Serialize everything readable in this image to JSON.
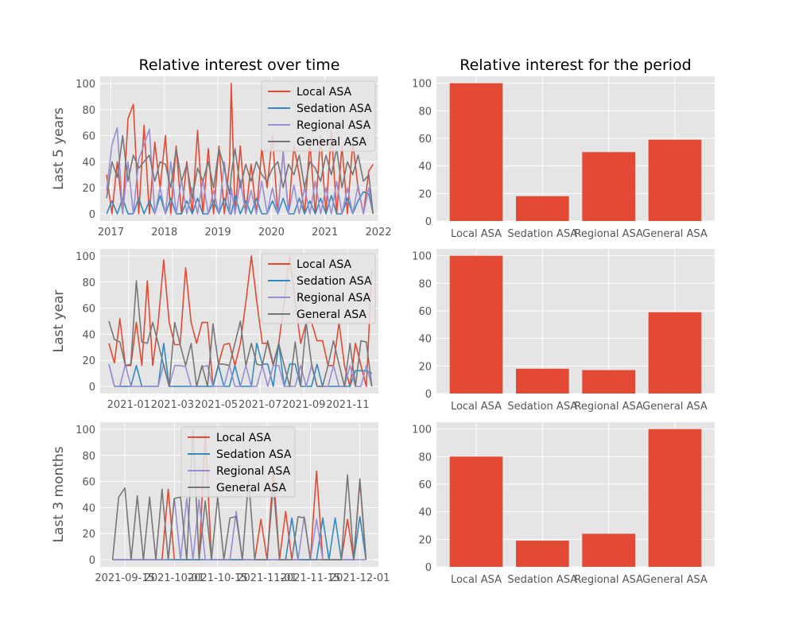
{
  "titles": {
    "left": "Relative interest over time",
    "right": "Relative interest for the period"
  },
  "colors": {
    "Local ASA": "#E24A33",
    "Sedation ASA": "#348ABD",
    "Regional ASA": "#988ED5",
    "General ASA": "#777777",
    "bar": "#E24A33",
    "panel_bg": "#E5E5E5",
    "grid": "#FFFFFF"
  },
  "chart_data": [
    {
      "type": "line",
      "ylabel": "Last 5 years",
      "title": "Relative interest over time",
      "ylim": [
        0,
        100
      ],
      "yticks": [
        "0",
        "20",
        "40",
        "60",
        "80",
        "100"
      ],
      "xlim": [
        2016.8,
        2022.0
      ],
      "xticks": [
        {
          "value": 2017,
          "label": "2017"
        },
        {
          "value": 2018,
          "label": "2018"
        },
        {
          "value": 2019,
          "label": "2019"
        },
        {
          "value": 2020,
          "label": "2020"
        },
        {
          "value": 2021,
          "label": "2021"
        },
        {
          "value": 2022,
          "label": "2022"
        }
      ],
      "x": [
        2016.92,
        2017.02,
        2017.12,
        2017.22,
        2017.32,
        2017.42,
        2017.52,
        2017.62,
        2017.72,
        2017.82,
        2017.92,
        2018.02,
        2018.12,
        2018.22,
        2018.32,
        2018.42,
        2018.52,
        2018.62,
        2018.72,
        2018.82,
        2018.92,
        2019.02,
        2019.12,
        2019.22,
        2019.25,
        2019.32,
        2019.42,
        2019.52,
        2019.62,
        2019.72,
        2019.82,
        2019.92,
        2020.02,
        2020.12,
        2020.22,
        2020.32,
        2020.42,
        2020.52,
        2020.62,
        2020.72,
        2020.82,
        2020.92,
        2021.02,
        2021.12,
        2021.22,
        2021.32,
        2021.42,
        2021.52,
        2021.62,
        2021.72,
        2021.82,
        2021.9
      ],
      "series": [
        {
          "name": "Local ASA",
          "values": [
            30,
            0,
            40,
            0,
            73,
            84,
            0,
            68,
            0,
            55,
            20,
            60,
            0,
            52,
            0,
            40,
            0,
            64,
            0,
            50,
            0,
            52,
            0,
            40,
            100,
            0,
            52,
            0,
            38,
            0,
            50,
            20,
            60,
            0,
            48,
            0,
            52,
            30,
            0,
            55,
            0,
            60,
            0,
            64,
            0,
            52,
            0,
            55,
            20,
            0,
            33,
            38
          ]
        },
        {
          "name": "Sedation ASA",
          "values": [
            0,
            10,
            0,
            12,
            0,
            0,
            12,
            0,
            10,
            0,
            14,
            0,
            12,
            0,
            0,
            10,
            0,
            12,
            0,
            0,
            10,
            0,
            12,
            0,
            0,
            14,
            0,
            10,
            0,
            12,
            0,
            0,
            10,
            0,
            12,
            0,
            0,
            12,
            0,
            10,
            0,
            12,
            0,
            14,
            0,
            0,
            12,
            0,
            10,
            17,
            15,
            0
          ]
        },
        {
          "name": "Regional ASA",
          "values": [
            18,
            53,
            66,
            0,
            40,
            0,
            42,
            53,
            65,
            0,
            20,
            0,
            40,
            0,
            26,
            0,
            20,
            0,
            26,
            0,
            18,
            0,
            40,
            0,
            20,
            0,
            26,
            0,
            18,
            0,
            25,
            0,
            20,
            0,
            48,
            0,
            22,
            0,
            20,
            0,
            25,
            0,
            20,
            0,
            25,
            0,
            20,
            0,
            22,
            0,
            20,
            0
          ]
        },
        {
          "name": "General ASA",
          "values": [
            12,
            40,
            28,
            60,
            25,
            45,
            35,
            40,
            45,
            25,
            40,
            38,
            20,
            50,
            25,
            38,
            12,
            35,
            25,
            40,
            20,
            50,
            35,
            15,
            30,
            50,
            20,
            38,
            25,
            40,
            30,
            25,
            35,
            40,
            20,
            38,
            30,
            45,
            20,
            40,
            35,
            25,
            45,
            30,
            50,
            20,
            40,
            30,
            45,
            25,
            30,
            0
          ]
        }
      ],
      "legend": "upper right"
    },
    {
      "type": "bar",
      "categories": [
        "Local ASA",
        "Sedation ASA",
        "Regional ASA",
        "General ASA"
      ],
      "values": [
        100,
        18,
        50,
        59
      ],
      "ylim": [
        0,
        105
      ],
      "yticks": [
        "0",
        "20",
        "40",
        "60",
        "80",
        "100"
      ]
    },
    {
      "type": "line",
      "ylabel": "Last year",
      "ylim": [
        0,
        100
      ],
      "yticks": [
        "0",
        "20",
        "40",
        "60",
        "80",
        "100"
      ],
      "xlim": [
        -1.3,
        11.4
      ],
      "xticks": [
        {
          "value": 0,
          "label": "2021-01"
        },
        {
          "value": 2,
          "label": "2021-03"
        },
        {
          "value": 4,
          "label": "2021-05"
        },
        {
          "value": 6,
          "label": "2021-07"
        },
        {
          "value": 8,
          "label": "2021-09"
        },
        {
          "value": 10,
          "label": "2021-11"
        }
      ],
      "x": [
        -0.9,
        -0.65,
        -0.4,
        -0.15,
        0.1,
        0.35,
        0.6,
        0.85,
        1.1,
        1.35,
        1.6,
        1.85,
        2.1,
        2.35,
        2.6,
        2.85,
        3.1,
        3.35,
        3.6,
        3.85,
        4.1,
        4.35,
        4.6,
        4.85,
        5.1,
        5.35,
        5.6,
        5.85,
        6.1,
        6.35,
        6.6,
        6.85,
        7.1,
        7.35,
        7.6,
        7.85,
        8.1,
        8.35,
        8.6,
        8.85,
        9.1,
        9.35,
        9.6,
        9.85,
        10.1,
        10.35,
        10.6,
        10.85,
        11.1
      ],
      "series": [
        {
          "name": "Local ASA",
          "values": [
            33,
            18,
            52,
            16,
            16,
            49,
            16,
            81,
            16,
            49,
            97,
            49,
            32,
            32,
            91,
            49,
            33,
            49,
            49,
            0,
            17,
            32,
            33,
            16,
            33,
            65,
            100,
            65,
            33,
            33,
            16,
            33,
            65,
            100,
            65,
            33,
            49,
            49,
            35,
            35,
            16,
            16,
            49,
            16,
            0,
            33,
            16,
            0,
            90
          ]
        },
        {
          "name": "Sedation ASA",
          "values": [
            17,
            0,
            0,
            0,
            0,
            16,
            0,
            0,
            0,
            0,
            33,
            0,
            0,
            0,
            0,
            0,
            0,
            0,
            0,
            0,
            16,
            0,
            0,
            16,
            0,
            0,
            0,
            33,
            17,
            17,
            0,
            33,
            0,
            17,
            17,
            0,
            0,
            0,
            17,
            0,
            0,
            0,
            0,
            0,
            0,
            12,
            12,
            12,
            10
          ]
        },
        {
          "name": "Regional ASA",
          "values": [
            17,
            0,
            0,
            17,
            0,
            0,
            0,
            0,
            0,
            0,
            17,
            0,
            16,
            16,
            15,
            0,
            0,
            15,
            16,
            0,
            0,
            0,
            16,
            0,
            0,
            16,
            0,
            0,
            16,
            0,
            16,
            16,
            0,
            0,
            0,
            16,
            0,
            16,
            0,
            0,
            0,
            16,
            0,
            0,
            16,
            0,
            0,
            16,
            0
          ]
        },
        {
          "name": "General ASA",
          "values": [
            50,
            36,
            34,
            16,
            17,
            81,
            34,
            33,
            49,
            33,
            16,
            0,
            49,
            32,
            16,
            33,
            0,
            16,
            0,
            48,
            17,
            17,
            16,
            33,
            50,
            16,
            33,
            17,
            16,
            35,
            17,
            33,
            16,
            0,
            34,
            0,
            49,
            17,
            0,
            0,
            16,
            35,
            17,
            0,
            33,
            0,
            35,
            34,
            0
          ]
        }
      ],
      "legend": "upper right"
    },
    {
      "type": "bar",
      "categories": [
        "Local ASA",
        "Sedation ASA",
        "Regional ASA",
        "General ASA"
      ],
      "values": [
        100,
        18,
        17,
        59
      ],
      "ylim": [
        0,
        105
      ],
      "yticks": [
        "0",
        "20",
        "40",
        "60",
        "80",
        "100"
      ]
    },
    {
      "type": "line",
      "ylabel": "Last 3 months",
      "ylim": [
        0,
        100
      ],
      "yticks": [
        "0",
        "20",
        "40",
        "60",
        "80",
        "100"
      ],
      "xlim": [
        -8,
        82
      ],
      "xticks": [
        {
          "value": 0,
          "label": "2021-09-15"
        },
        {
          "value": 16,
          "label": "2021-10-01"
        },
        {
          "value": 30,
          "label": "2021-10-15"
        },
        {
          "value": 46,
          "label": "2021-11-01"
        },
        {
          "value": 60,
          "label": "2021-11-15"
        },
        {
          "value": 76,
          "label": "2021-12-01"
        }
      ],
      "x": [
        -4,
        -2,
        0,
        2,
        4,
        6,
        8,
        10,
        12,
        14,
        16,
        18,
        20,
        22,
        24,
        26,
        28,
        30,
        32,
        34,
        36,
        38,
        40,
        42,
        44,
        46,
        48,
        50,
        52,
        54,
        56,
        58,
        60,
        62,
        64,
        66,
        68,
        70,
        72,
        74,
        76,
        78
      ],
      "series": [
        {
          "name": "Local ASA",
          "values": [
            0,
            0,
            0,
            0,
            0,
            0,
            0,
            0,
            0,
            54,
            0,
            0,
            0,
            0,
            0,
            97,
            0,
            0,
            0,
            0,
            0,
            0,
            0,
            0,
            31,
            0,
            68,
            0,
            37,
            0,
            0,
            0,
            0,
            68,
            0,
            0,
            0,
            0,
            31,
            0,
            60,
            0
          ]
        },
        {
          "name": "Sedation ASA",
          "values": [
            0,
            0,
            0,
            0,
            0,
            0,
            0,
            0,
            0,
            0,
            0,
            0,
            0,
            0,
            0,
            0,
            0,
            0,
            0,
            0,
            0,
            0,
            0,
            0,
            0,
            0,
            0,
            0,
            0,
            32,
            0,
            0,
            0,
            0,
            32,
            0,
            32,
            0,
            0,
            0,
            33,
            0
          ]
        },
        {
          "name": "Regional ASA",
          "values": [
            0,
            0,
            0,
            0,
            0,
            0,
            0,
            0,
            0,
            0,
            47,
            0,
            47,
            0,
            46,
            0,
            0,
            0,
            0,
            0,
            37,
            0,
            0,
            0,
            0,
            0,
            0,
            0,
            0,
            0,
            0,
            33,
            0,
            31,
            0,
            0,
            0,
            0,
            0,
            0,
            0,
            0
          ]
        },
        {
          "name": "General ASA",
          "values": [
            0,
            48,
            55,
            0,
            49,
            0,
            48,
            0,
            54,
            0,
            47,
            48,
            0,
            100,
            0,
            45,
            0,
            48,
            0,
            32,
            33,
            0,
            62,
            0,
            0,
            0,
            57,
            0,
            0,
            0,
            33,
            32,
            0,
            0,
            0,
            0,
            0,
            0,
            65,
            0,
            62,
            0
          ]
        }
      ],
      "legend": "upper center"
    },
    {
      "type": "bar",
      "categories": [
        "Local ASA",
        "Sedation ASA",
        "Regional ASA",
        "General ASA"
      ],
      "values": [
        80,
        19,
        24,
        100
      ],
      "ylim": [
        0,
        105
      ],
      "yticks": [
        "0",
        "20",
        "40",
        "60",
        "80",
        "100"
      ]
    }
  ]
}
